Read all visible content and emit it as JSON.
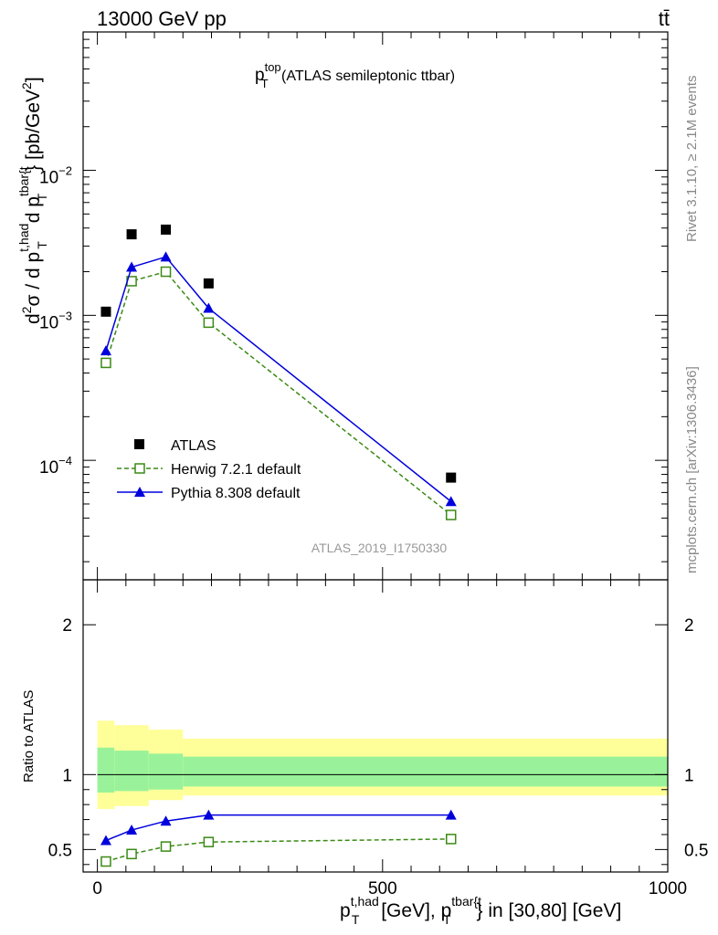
{
  "header": {
    "left": "13000 GeV pp",
    "right": "tt̄"
  },
  "side_labels": {
    "rivet": "Rivet 3.1.10, ≥ 2.1M events",
    "mcplots": "mcplots.cern.ch [arXiv:1306.3436]"
  },
  "watermark": "ATLAS_2019_I1750330",
  "chart_data": [
    {
      "type": "line",
      "panel": "main",
      "title": {
        "p": "p",
        "sub": "T",
        "sup": "top",
        "rest": " (ATLAS semileptonic ttbar)"
      },
      "ylabel": {
        "d2": "d",
        "d2sup": "2",
        "sigma": "σ / d p",
        "sub1": "T",
        "sup1": "t,had",
        "mid": " d p",
        "sub2": "T",
        "sup2": "tbar{t",
        "tail": "} [pb/GeV",
        "tailsup": "2",
        "end": "]"
      },
      "yscale": "log",
      "ylim": [
        1.5e-05,
        0.09
      ],
      "xlim": [
        -25,
        1000
      ],
      "y_tick_labels": [
        {
          "base": "10",
          "exp": "−4",
          "value": 0.0001
        },
        {
          "base": "10",
          "exp": "−3",
          "value": 0.001
        },
        {
          "base": "10",
          "exp": "−2",
          "value": 0.01
        }
      ],
      "legend_position": "bottom-left",
      "series": [
        {
          "name": "ATLAS",
          "style": "markers",
          "marker": "square-filled",
          "color": "#000000",
          "x": [
            15,
            60,
            120,
            195,
            620
          ],
          "y": [
            0.00106,
            0.00362,
            0.0039,
            0.00166,
            7.6e-05
          ]
        },
        {
          "name": "Herwig 7.2.1 default",
          "style": "dashed",
          "marker": "square-open",
          "color": "#3a8a14",
          "x": [
            15,
            60,
            120,
            195,
            620
          ],
          "y": [
            0.00047,
            0.00172,
            0.002,
            0.00089,
            4.2e-05
          ]
        },
        {
          "name": "Pythia 8.308 default",
          "style": "solid",
          "marker": "triangle-filled",
          "color": "#0000dd",
          "x": [
            15,
            60,
            120,
            195,
            620
          ],
          "y": [
            0.00057,
            0.00215,
            0.00253,
            0.00112,
            5.2e-05
          ]
        }
      ]
    },
    {
      "type": "line",
      "panel": "ratio",
      "ylabel": "Ratio to ATLAS",
      "ylim": [
        0.35,
        2.3
      ],
      "xlim": [
        -25,
        1000
      ],
      "y_tick_labels": [
        {
          "label": "0.5",
          "value": 0.5
        },
        {
          "label": "1",
          "value": 1
        },
        {
          "label": "2",
          "value": 2
        }
      ],
      "x_tick_labels": [
        {
          "label": "0",
          "value": 0
        },
        {
          "label": "500",
          "value": 500
        },
        {
          "label": "1000",
          "value": 1000
        }
      ],
      "xlabel": {
        "p": "p",
        "sub1": "T",
        "sup1": "t,had",
        "mid": " [GeV], p",
        "sub2": "T",
        "sup2": "tbar{t",
        "tail": "} in [30,80] [GeV]"
      },
      "uncertainty_bands": [
        {
          "x0": 0,
          "x1": 30,
          "stat": [
            0.88,
            1.18
          ],
          "total": [
            0.77,
            1.36
          ]
        },
        {
          "x0": 30,
          "x1": 90,
          "stat": [
            0.89,
            1.16
          ],
          "total": [
            0.79,
            1.33
          ]
        },
        {
          "x0": 90,
          "x1": 150,
          "stat": [
            0.9,
            1.14
          ],
          "total": [
            0.83,
            1.3
          ]
        },
        {
          "x0": 150,
          "x1": 1000,
          "stat": [
            0.92,
            1.12
          ],
          "total": [
            0.86,
            1.24
          ]
        }
      ],
      "colors": {
        "stat": "#99f299",
        "total": "#ffff99"
      },
      "series": [
        {
          "name": "Herwig 7.2.1 default",
          "style": "dashed",
          "marker": "square-open",
          "color": "#3a8a14",
          "x": [
            15,
            60,
            120,
            195,
            620
          ],
          "y": [
            0.42,
            0.47,
            0.52,
            0.55,
            0.57
          ]
        },
        {
          "name": "Pythia 8.308 default",
          "style": "solid",
          "marker": "triangle-filled",
          "color": "#0000dd",
          "x": [
            15,
            60,
            120,
            195,
            620
          ],
          "y": [
            0.56,
            0.63,
            0.69,
            0.73,
            0.73
          ]
        }
      ]
    }
  ]
}
